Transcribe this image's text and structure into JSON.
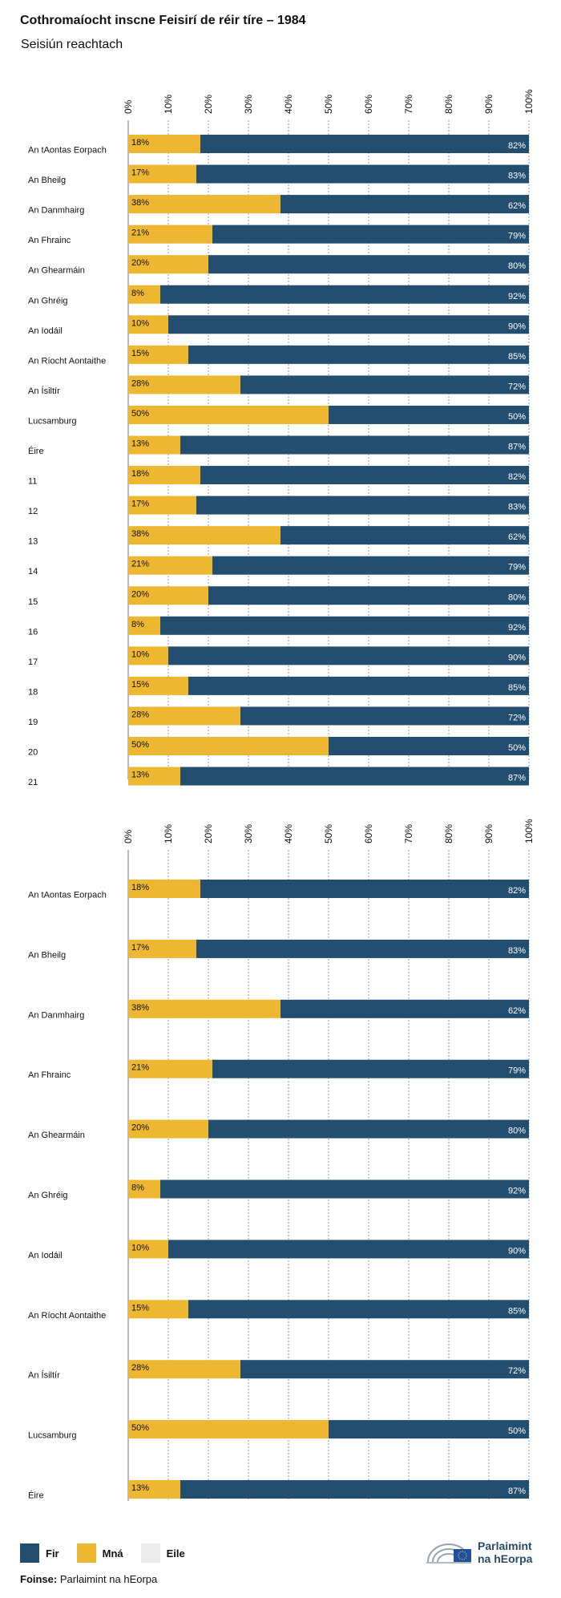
{
  "header": {
    "title": "Cothromaíocht inscne Feisirí de réir tíre – 1984",
    "subtitle": "Seisiún reachtach"
  },
  "colors": {
    "men": "#234e6f",
    "women": "#edb732",
    "other": "#ececec",
    "grid": "#888888"
  },
  "legend": [
    {
      "label": "Fir",
      "color": "#234e6f"
    },
    {
      "label": "Mná",
      "color": "#edb732"
    },
    {
      "label": "Eile",
      "color": "#ececec"
    }
  ],
  "source": {
    "label": "Foinse:",
    "text": "Parlaimint na hEorpa"
  },
  "logo": {
    "line1": "Parlaimint",
    "line2": "na hEorpa"
  },
  "chart_data": [
    {
      "type": "bar",
      "stacked": true,
      "orientation": "horizontal",
      "xlim": [
        0,
        100
      ],
      "tick_labels": [
        "0%",
        "10%",
        "20%",
        "30%",
        "40%",
        "50%",
        "60%",
        "70%",
        "80%",
        "90%",
        "100%"
      ],
      "categories": [
        "An tAontas Eorpach",
        "An Bheilg",
        "An Danmhairg",
        "An Fhrainc",
        "An Ghearmáin",
        "An Ghréig",
        "An Iodáil",
        "An Ríocht Aontaithe",
        "An Ísiltír",
        "Lucsamburg",
        "Éire",
        "11",
        "12",
        "13",
        "14",
        "15",
        "16",
        "17",
        "18",
        "19",
        "20",
        "21"
      ],
      "series": [
        {
          "name": "Mná",
          "labels": [
            "18%",
            "17%",
            "38%",
            "21%",
            "20%",
            "8%",
            "10%",
            "15%",
            "28%",
            "50%",
            "13%",
            "18%",
            "17%",
            "38%",
            "21%",
            "20%",
            "8%",
            "10%",
            "15%",
            "28%",
            "50%",
            "13%"
          ],
          "values": [
            18,
            17,
            38,
            21,
            20,
            8,
            10,
            15,
            28,
            50,
            13,
            18,
            17,
            38,
            21,
            20,
            8,
            10,
            15,
            28,
            50,
            13
          ]
        },
        {
          "name": "Fir",
          "labels": [
            "82%",
            "83%",
            "62%",
            "79%",
            "80%",
            "92%",
            "90%",
            "85%",
            "72%",
            "50%",
            "87%",
            "82%",
            "83%",
            "62%",
            "79%",
            "80%",
            "92%",
            "90%",
            "85%",
            "72%",
            "50%",
            "87%"
          ],
          "values": [
            82,
            83,
            62,
            79,
            80,
            92,
            90,
            85,
            72,
            50,
            87,
            82,
            83,
            62,
            79,
            80,
            92,
            90,
            85,
            72,
            50,
            87
          ]
        }
      ]
    },
    {
      "type": "bar",
      "stacked": true,
      "orientation": "horizontal",
      "xlim": [
        0,
        100
      ],
      "tick_labels": [
        "0%",
        "10%",
        "20%",
        "30%",
        "40%",
        "50%",
        "60%",
        "70%",
        "80%",
        "90%",
        "100%"
      ],
      "categories": [
        "An tAontas Eorpach",
        "An Bheilg",
        "An Danmhairg",
        "An Fhrainc",
        "An Ghearmáin",
        "An Ghréig",
        "An Iodáil",
        "An Ríocht Aontaithe",
        "An Ísiltír",
        "Lucsamburg",
        "Éire"
      ],
      "series": [
        {
          "name": "Mná",
          "labels": [
            "18%",
            "17%",
            "38%",
            "21%",
            "20%",
            "8%",
            "10%",
            "15%",
            "28%",
            "50%",
            "13%"
          ],
          "values": [
            18,
            17,
            38,
            21,
            20,
            8,
            10,
            15,
            28,
            50,
            13
          ]
        },
        {
          "name": "Fir",
          "labels": [
            "82%",
            "83%",
            "62%",
            "79%",
            "80%",
            "92%",
            "90%",
            "85%",
            "72%",
            "50%",
            "87%"
          ],
          "values": [
            82,
            83,
            62,
            79,
            80,
            92,
            90,
            85,
            72,
            50,
            87
          ]
        }
      ]
    }
  ]
}
